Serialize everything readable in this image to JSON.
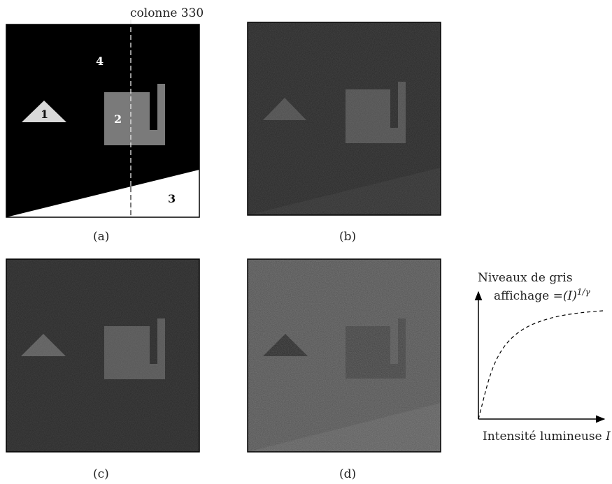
{
  "panel_a": {
    "column_label": "colonne 330",
    "regions": [
      "1",
      "2",
      "3",
      "4"
    ],
    "caption": "(a)"
  },
  "panel_b": {
    "caption": "(b)"
  },
  "panel_c": {
    "caption": "(c)"
  },
  "panel_d": {
    "caption": "(d)"
  },
  "curve": {
    "y_axis_label": "Niveaux de gris",
    "curve_label_prefix": "affichage =",
    "curve_label_base": "(I)",
    "curve_label_exp": "1/γ",
    "x_axis_label_text": "Intensité lumineuse ",
    "x_axis_label_var": "I"
  },
  "colors": {
    "background": "#000000",
    "triangle": "#d8d8d8",
    "square": "#7a7a7a",
    "region3": "#ffffff"
  }
}
